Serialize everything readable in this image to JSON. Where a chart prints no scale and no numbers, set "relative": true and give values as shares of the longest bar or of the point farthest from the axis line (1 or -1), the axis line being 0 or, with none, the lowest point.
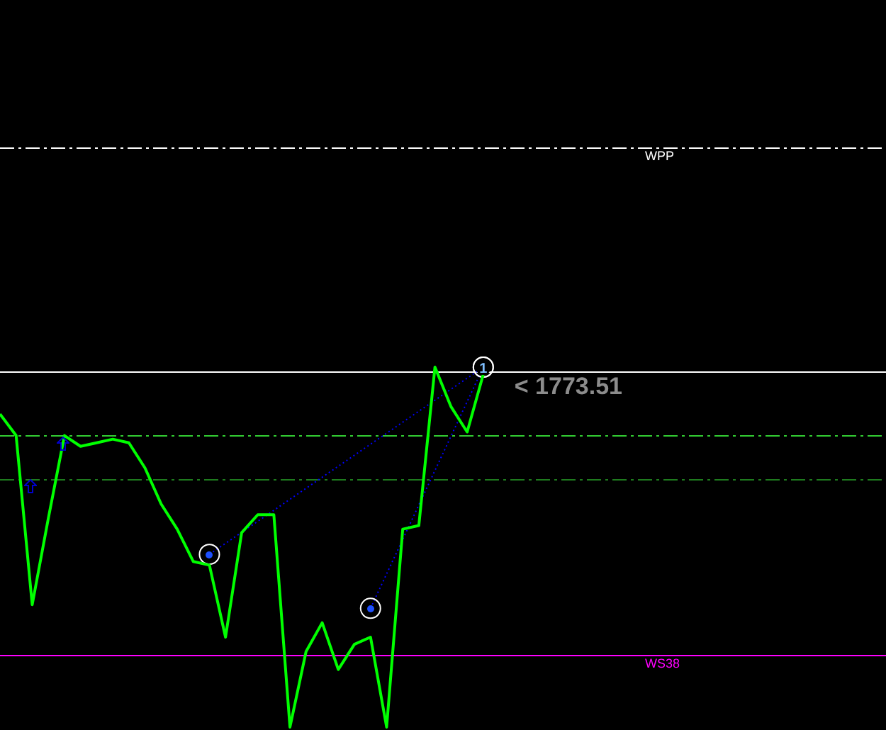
{
  "chart_data": {
    "type": "line",
    "relative": true,
    "categories": [
      null,
      null,
      null,
      null,
      null,
      null,
      null,
      null,
      null,
      null,
      null,
      null,
      null,
      null,
      null,
      null,
      null,
      null,
      null,
      null,
      null,
      null,
      null,
      null,
      null,
      null,
      null,
      null,
      null,
      null,
      null,
      null,
      null,
      null,
      null,
      null,
      null,
      null,
      null,
      null,
      null,
      null,
      null,
      null,
      null,
      null,
      null,
      null,
      null,
      null,
      null,
      null,
      null,
      null,
      null,
      null
    ],
    "series": [
      {
        "color": "#00ff00",
        "values": [
          0.87,
          0.81,
          0.34,
          0.58,
          0.81,
          0.78,
          0.79,
          0.8,
          0.79,
          0.72,
          0.62,
          0.55,
          0.46,
          0.45,
          0.25,
          0.54,
          0.59,
          0.59,
          0,
          0.21,
          0.29,
          0.16,
          0.23,
          0.25,
          0,
          0.55,
          0.56,
          1,
          0.89,
          0.82,
          0.98,
          null,
          null,
          null,
          null,
          null,
          null,
          null,
          null,
          null,
          null,
          null,
          null,
          null,
          null,
          null,
          null,
          null,
          null,
          null,
          null,
          null,
          null,
          null,
          null,
          null
        ]
      },
      {
        "color": "#0000ff",
        "line_style": "dotted",
        "marker": "circle",
        "values": [
          null,
          null,
          null,
          null,
          null,
          null,
          null,
          null,
          null,
          null,
          null,
          null,
          null,
          0.48,
          null,
          null,
          null,
          null,
          null,
          null,
          null,
          null,
          null,
          null,
          null,
          null,
          null,
          null,
          null,
          null,
          1,
          null,
          null,
          null,
          null,
          null,
          null,
          null,
          null,
          null,
          null,
          null,
          null,
          null,
          null,
          null,
          null,
          null,
          null,
          null,
          null,
          null,
          null,
          null,
          null,
          null
        ]
      },
      {
        "color": "#0000ff",
        "line_style": "dotted",
        "marker": "circle",
        "values": [
          null,
          null,
          null,
          null,
          null,
          null,
          null,
          null,
          null,
          null,
          null,
          null,
          null,
          null,
          null,
          null,
          null,
          null,
          null,
          null,
          null,
          null,
          null,
          0.33,
          null,
          null,
          null,
          null,
          null,
          null,
          1,
          null,
          null,
          null,
          null,
          null,
          null,
          null,
          null,
          null,
          null,
          null,
          null,
          null,
          null,
          null,
          null,
          null,
          null,
          null,
          null,
          null,
          null,
          null,
          null,
          null
        ]
      }
    ],
    "ref_lines": [
      {
        "axis": "y",
        "value": 1.61,
        "label": "WPP",
        "color": "#ffffff",
        "line_style": "dashdot"
      },
      {
        "axis": "y",
        "value": 0.99,
        "color": "#ffffff",
        "line_style": "solid"
      },
      {
        "axis": "y",
        "value": 0.81,
        "color": "#32cd32",
        "line_style": "dashdot"
      },
      {
        "axis": "y",
        "value": 0.69,
        "color": "#1e7b1e",
        "line_style": "dashdot"
      },
      {
        "axis": "y",
        "value": 0.2,
        "label": "WS38",
        "color": "#ff00ff",
        "line_style": "solid"
      }
    ],
    "annotations": [
      "1",
      "< 1773.51"
    ],
    "legend": false,
    "grid": false,
    "tick_labels": false
  }
}
